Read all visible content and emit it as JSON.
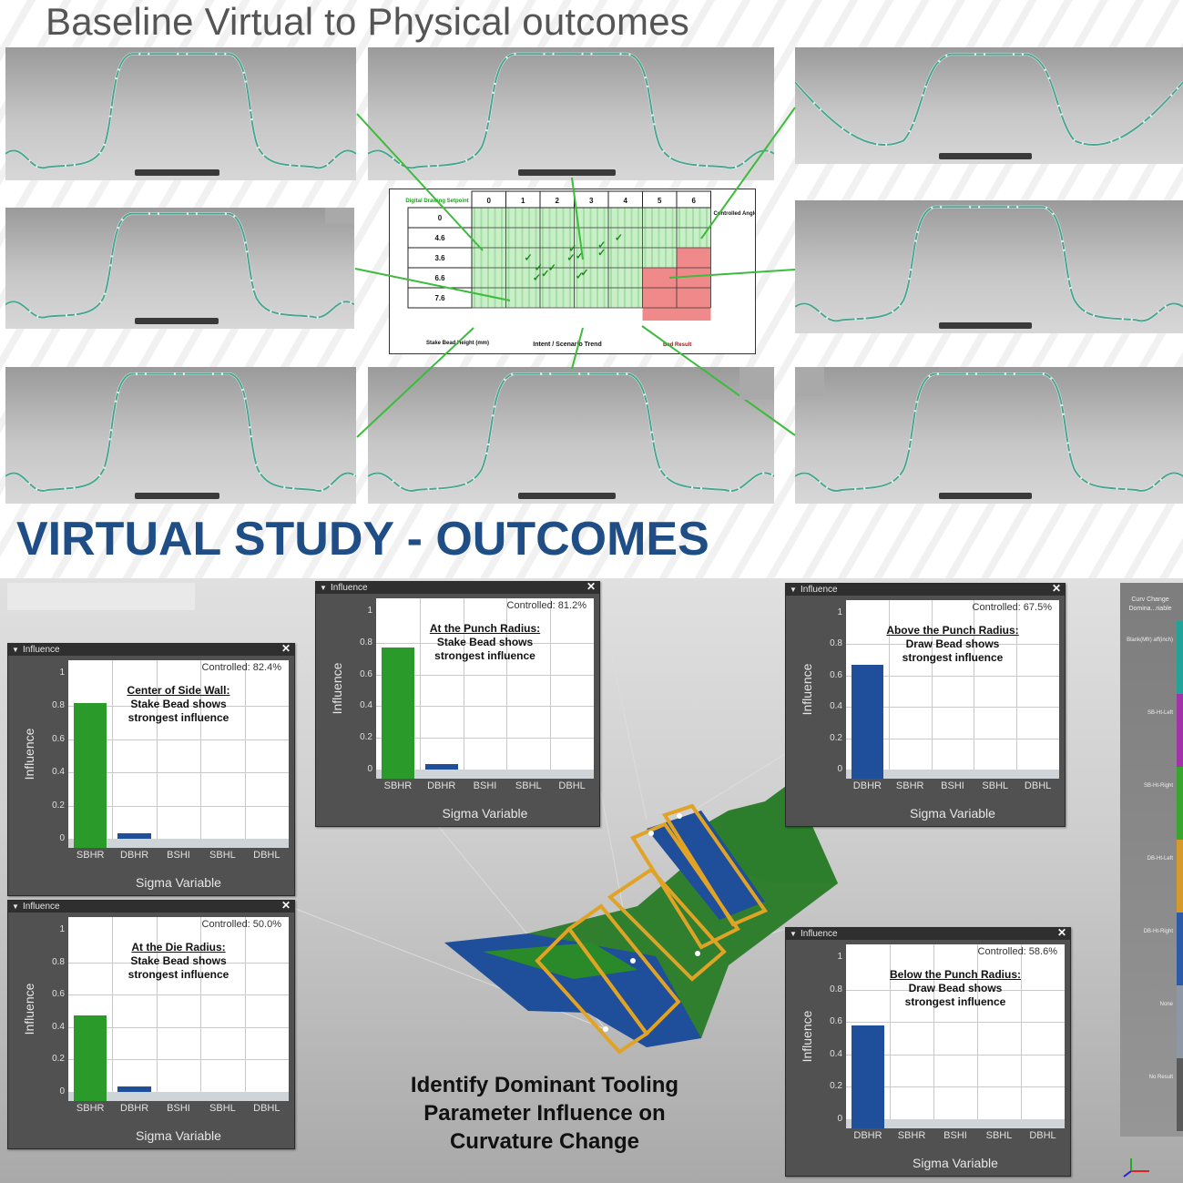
{
  "top_title": "Baseline Virtual to Physical outcomes",
  "section_title": "VIRTUAL STUDY - OUTCOMES",
  "colors": {
    "accent_blue": "#1f4e86",
    "bar_green": "#2a9a2a",
    "bar_blue": "#1f4e9a",
    "callout_green": "#3dbb3d",
    "frame_orange": "#e0a325",
    "panel_dark": "#515151"
  },
  "sensitivity_table": {
    "columns": [
      "0",
      "1",
      "2",
      "3",
      "4",
      "5",
      "6"
    ],
    "rows": [
      "0",
      "4.6",
      "3.6",
      "6.6",
      "7.6"
    ],
    "header_label": "Digital Drawing Setpoint",
    "right_label": "Controlled Angle (mm)",
    "bottom_left_label": "Stake Bead Height (mm)",
    "bottom_center_label": "Intent / Scenario Trend",
    "bottom_right_label": "Bad Result",
    "check_glyph": "✓"
  },
  "influence_panels": [
    {
      "header": "Influence",
      "controlled": "Controlled: 82.4%",
      "note_title": "Center of Side Wall:",
      "note_body": [
        "Stake Bead shows",
        "strongest influence"
      ],
      "y_ticks": [
        "1",
        "0.8",
        "0.6",
        "0.4",
        "0.2",
        "0"
      ],
      "y_title": "Influence",
      "x_title": "Sigma Variable",
      "categories": [
        "SBHR",
        "DBHR",
        "BSHI",
        "SBHL",
        "DBHL"
      ],
      "values": [
        0.82,
        0.01,
        0,
        0,
        0
      ]
    },
    {
      "header": "Influence",
      "controlled": "Controlled: 81.2%",
      "note_title": "At the Punch Radius:",
      "note_body": [
        "Stake Bead shows",
        "strongest influence"
      ],
      "y_ticks": [
        "1",
        "0.8",
        "0.6",
        "0.4",
        "0.2",
        "0"
      ],
      "y_title": "Influence",
      "x_title": "Sigma Variable",
      "categories": [
        "SBHR",
        "DBHR",
        "BSHI",
        "SBHL",
        "DBHL"
      ],
      "values": [
        0.77,
        0.05,
        0,
        0,
        0
      ]
    },
    {
      "header": "Influence",
      "controlled": "Controlled: 67.5%",
      "note_title": "Above the Punch Radius:",
      "note_body": [
        "Draw Bead shows",
        "strongest influence"
      ],
      "y_ticks": [
        "1",
        "0.8",
        "0.6",
        "0.4",
        "0.2",
        "0"
      ],
      "y_title": "Influence",
      "x_title": "Sigma Variable",
      "categories": [
        "DBHR",
        "SBHR",
        "BSHI",
        "SBHL",
        "DBHL"
      ],
      "values": [
        0.67,
        0,
        0,
        0,
        0
      ]
    },
    {
      "header": "Influence",
      "controlled": "Controlled: 50.0%",
      "note_title": "At the Die Radius:",
      "note_body": [
        "Stake Bead shows",
        "strongest influence"
      ],
      "y_ticks": [
        "1",
        "0.8",
        "0.6",
        "0.4",
        "0.2",
        "0"
      ],
      "y_title": "Influence",
      "x_title": "Sigma Variable",
      "categories": [
        "SBHR",
        "DBHR",
        "BSHI",
        "SBHL",
        "DBHL"
      ],
      "values": [
        0.47,
        0.03,
        0,
        0,
        0
      ]
    },
    {
      "header": "Influence",
      "controlled": "Controlled: 58.6%",
      "note_title": "Below the Punch Radius:",
      "note_body": [
        "Draw Bead shows",
        "strongest influence"
      ],
      "y_ticks": [
        "1",
        "0.8",
        "0.6",
        "0.4",
        "0.2",
        "0"
      ],
      "y_title": "Influence",
      "x_title": "Sigma Variable",
      "categories": [
        "DBHR",
        "SBHR",
        "BSHI",
        "SBHL",
        "DBHL"
      ],
      "values": [
        0.58,
        0,
        0,
        0,
        0
      ]
    }
  ],
  "caption": [
    "Identify Dominant Tooling",
    "Parameter Influence on",
    "Curvature Change"
  ],
  "legend": {
    "title": "Curv Change Domina...riable",
    "items": [
      {
        "label": "Blank(Mfr) aff(inch)",
        "color": "#21a39a"
      },
      {
        "label": "SB-Ht-Left",
        "color": "#a233a8"
      },
      {
        "label": "SB-Ht-Right",
        "color": "#3aa52e"
      },
      {
        "label": "DB-Ht-Left",
        "color": "#d69a2a"
      },
      {
        "label": "DB-Ht-Right",
        "color": "#2c59a8"
      },
      {
        "label": "None",
        "color": "#8e97a6"
      },
      {
        "label": "No Result",
        "color": "#5a5a5a"
      }
    ]
  }
}
